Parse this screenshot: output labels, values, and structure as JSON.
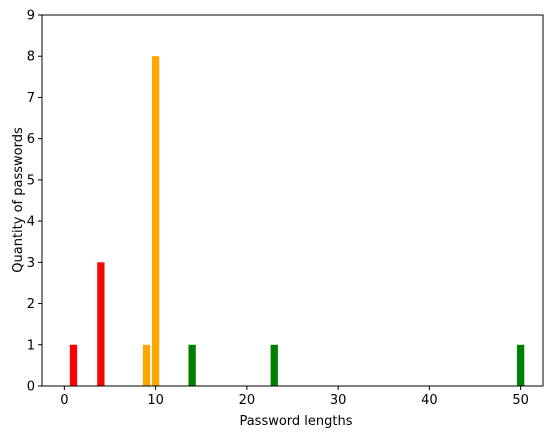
{
  "chart_data": {
    "type": "bar",
    "title": "",
    "xlabel": "Password lengths",
    "ylabel": "Quantity of passwords",
    "xlim": [
      -2.45,
      52.45
    ],
    "ylim": [
      0,
      9
    ],
    "xticks": [
      0,
      10,
      20,
      30,
      40,
      50
    ],
    "yticks": [
      0,
      1,
      2,
      3,
      4,
      5,
      6,
      7,
      8,
      9
    ],
    "grid": false,
    "legend": "none",
    "bar_width": 0.8,
    "bars": [
      {
        "x": 1,
        "value": 1,
        "color": "#ff0000"
      },
      {
        "x": 4,
        "value": 3,
        "color": "#ff0000"
      },
      {
        "x": 9,
        "value": 1,
        "color": "#ffa500"
      },
      {
        "x": 10,
        "value": 8,
        "color": "#ffa500"
      },
      {
        "x": 14,
        "value": 1,
        "color": "#008000"
      },
      {
        "x": 23,
        "value": 1,
        "color": "#008000"
      },
      {
        "x": 50,
        "value": 1,
        "color": "#008000"
      }
    ]
  }
}
